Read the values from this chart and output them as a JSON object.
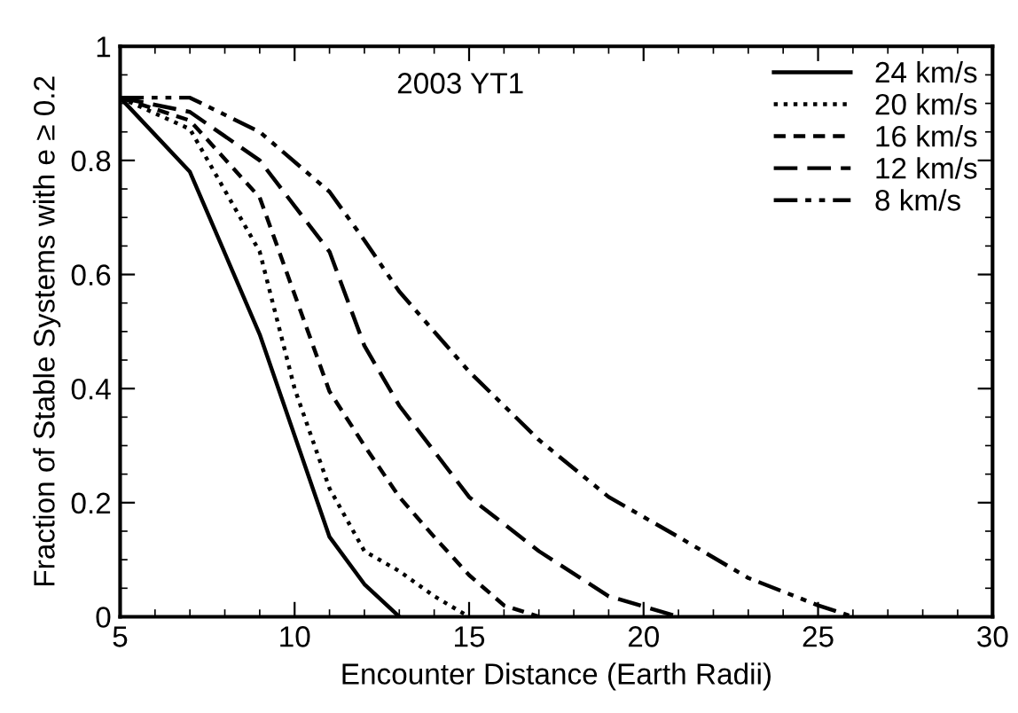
{
  "chart_data": {
    "type": "line",
    "xlabel": "Encounter Distance (Earth Radii)",
    "ylabel": "Fraction of Stable Systems with e ≥ 0.2",
    "annotations": [
      "2003 YT1"
    ],
    "xlim": [
      5,
      30
    ],
    "ylim": [
      0,
      1
    ],
    "xticks": [
      5,
      10,
      15,
      20,
      25,
      30
    ],
    "yticks": [
      0,
      0.2,
      0.4,
      0.6,
      0.8,
      1
    ],
    "legend": "top right",
    "grid": false,
    "marker": "none",
    "series": [
      {
        "name": "24 km/s",
        "color": "#000000",
        "line_style": "solid",
        "x": [
          5,
          7,
          9,
          11,
          12,
          13
        ],
        "values": [
          0.91,
          0.78,
          0.495,
          0.14,
          0.057,
          0
        ]
      },
      {
        "name": "20 km/s",
        "color": "#000000",
        "line_style": "dotted",
        "x": [
          5,
          7,
          9,
          10,
          11,
          12,
          13,
          14,
          15
        ],
        "values": [
          0.91,
          0.855,
          0.64,
          0.4,
          0.225,
          0.115,
          0.08,
          0.036,
          0
        ]
      },
      {
        "name": "16 km/s",
        "color": "#000000",
        "line_style": "dashed",
        "x": [
          5,
          7,
          9,
          11,
          12,
          13,
          14,
          15,
          16,
          17
        ],
        "values": [
          0.91,
          0.87,
          0.735,
          0.395,
          0.3,
          0.21,
          0.14,
          0.073,
          0.02,
          0
        ]
      },
      {
        "name": "12 km/s",
        "color": "#000000",
        "line_style": "longdash",
        "x": [
          5,
          7,
          9,
          11,
          12,
          13,
          15,
          17,
          19,
          21
        ],
        "values": [
          0.91,
          0.885,
          0.8,
          0.64,
          0.475,
          0.37,
          0.21,
          0.115,
          0.036,
          0
        ]
      },
      {
        "name": "8 km/s",
        "color": "#000000",
        "line_style": "dashdotdot",
        "x": [
          5,
          7,
          9,
          11,
          12,
          13,
          15,
          17,
          19,
          21,
          23,
          25,
          26
        ],
        "values": [
          0.91,
          0.91,
          0.85,
          0.745,
          0.66,
          0.57,
          0.43,
          0.31,
          0.21,
          0.14,
          0.068,
          0.02,
          0
        ]
      }
    ]
  }
}
